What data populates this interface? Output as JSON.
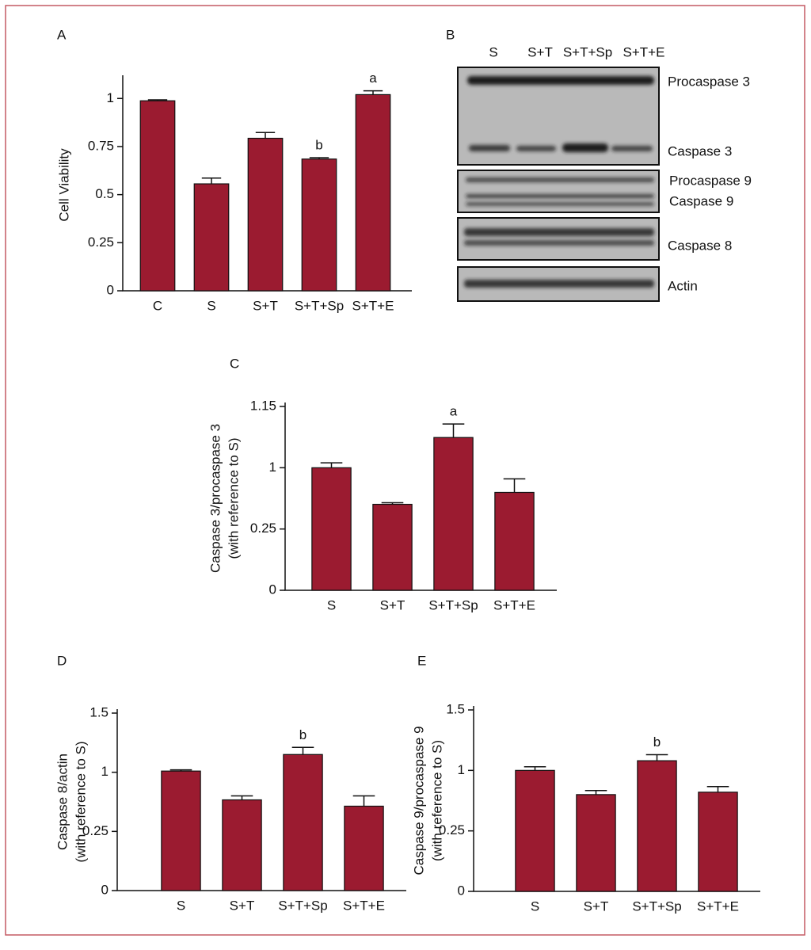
{
  "chart_data": [
    {
      "type": "bar",
      "panel_label": "A",
      "ylabel": [
        "Cell Viability"
      ],
      "categories": [
        "C",
        "S",
        "S+T",
        "S+T+Sp",
        "S+T+E"
      ],
      "values": [
        0.988,
        0.556,
        0.793,
        0.685,
        1.02
      ],
      "errors": [
        0.005,
        0.03,
        0.03,
        0.007,
        0.02
      ],
      "annotations": [
        null,
        null,
        null,
        "b",
        "a"
      ],
      "color": "#9b1b30",
      "ylim": [
        0,
        1.1
      ],
      "yticks": [
        0,
        0.25,
        0.5,
        0.75,
        1
      ]
    },
    {
      "type": "bar",
      "panel_label": "C",
      "ylabel": [
        "Caspase 3/procaspase 3",
        "(with reference to S)"
      ],
      "categories": [
        "S",
        "S+T",
        "S+T+Sp",
        "S+T+E"
      ],
      "values": [
        1.0,
        0.552,
        1.074,
        0.698
      ],
      "errors": [
        0.012,
        0.02,
        0.033,
        0.166
      ],
      "annotations": [
        null,
        null,
        "a",
        null
      ],
      "color": "#9b1b30",
      "ylim": [
        0,
        1.15
      ],
      "yticks": [
        0,
        0.25,
        1,
        1.15
      ]
    },
    {
      "type": "bar",
      "panel_label": "D",
      "ylabel": [
        "Caspase 8/actin",
        "(with reference to S)"
      ],
      "categories": [
        "S",
        "S+T",
        "S+T+Sp",
        "S+T+E"
      ],
      "values": [
        1.01,
        0.65,
        1.15,
        0.57
      ],
      "errors": [
        0.01,
        0.05,
        0.06,
        0.13
      ],
      "annotations": [
        null,
        null,
        "b",
        null
      ],
      "color": "#9b1b30",
      "ylim": [
        0,
        1.5
      ],
      "yticks": [
        0,
        0.25,
        1,
        1.5
      ]
    },
    {
      "type": "bar",
      "panel_label": "E",
      "ylabel": [
        "Caspase 9/procaspase 9",
        "(with reference to S)"
      ],
      "categories": [
        "S",
        "S+T",
        "S+T+Sp",
        "S+T+E"
      ],
      "values": [
        1.0,
        0.7,
        1.08,
        0.73
      ],
      "errors": [
        0.03,
        0.05,
        0.05,
        0.07
      ],
      "annotations": [
        null,
        null,
        "b",
        null
      ],
      "color": "#9b1b30",
      "ylim": [
        0,
        1.5
      ],
      "yticks": [
        0,
        0.25,
        1,
        1.5
      ]
    }
  ],
  "blot": {
    "panel_label": "B",
    "lanes": [
      "S",
      "S+T",
      "S+T+Sp",
      "S+T+E"
    ],
    "bands": [
      "Procaspase 3",
      "Caspase 3",
      "Procaspase 9",
      "Caspase 9",
      "Caspase 8",
      "Actin"
    ]
  }
}
